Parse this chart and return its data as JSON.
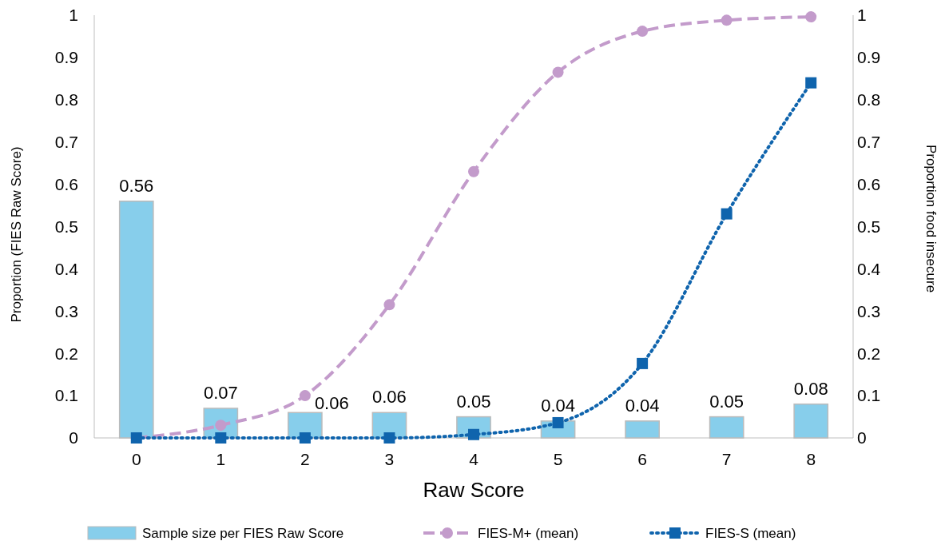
{
  "chart_data": {
    "type": "bar",
    "xlabel": "Raw Score",
    "ylabel": "Proportion (FIES Raw Score)",
    "y2label": "Proportion food insecure",
    "categories": [
      "0",
      "1",
      "2",
      "3",
      "4",
      "5",
      "6",
      "7",
      "8"
    ],
    "series": [
      {
        "name": "Sample size per FIES Raw Score",
        "color": "#87ceeb",
        "values": [
          0.56,
          0.07,
          0.06,
          0.06,
          0.05,
          0.04,
          0.04,
          0.05,
          0.08
        ],
        "data_labels": true
      },
      {
        "name": "FIES-M+ (mean)",
        "type": "line",
        "axis": "y2",
        "color": "#c39bcb",
        "line_style": "dashed",
        "marker": "circle",
        "values": [
          0,
          0.03,
          0.1,
          0.315,
          0.63,
          0.865,
          0.962,
          0.988,
          0.996
        ]
      },
      {
        "name": "FIES-S (mean)",
        "type": "line",
        "axis": "y2",
        "color": "#0f64ad",
        "line_style": "dotted",
        "marker": "square",
        "values": [
          0,
          0,
          0,
          0,
          0.008,
          0.036,
          0.176,
          0.53,
          0.84
        ]
      }
    ],
    "ylim": [
      0,
      1
    ],
    "yticks": [
      0,
      0.1,
      0.2,
      0.3,
      0.4,
      0.5,
      0.6,
      0.7,
      0.8,
      0.9,
      1
    ],
    "y2lim": [
      0,
      1
    ],
    "y2ticks": [
      0,
      0.1,
      0.2,
      0.3,
      0.4,
      0.5,
      0.6,
      0.7,
      0.8,
      0.9,
      1
    ],
    "grid": false,
    "legend": "bottom"
  }
}
